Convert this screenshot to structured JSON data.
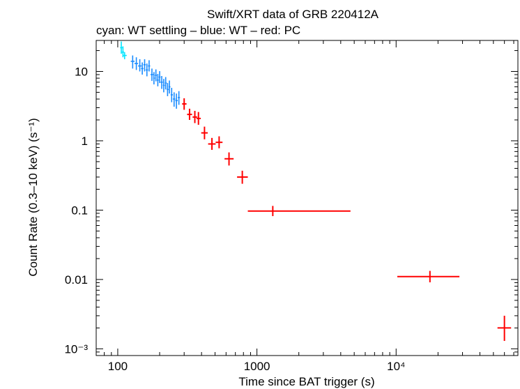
{
  "chart_data": {
    "type": "scatter",
    "title": "Swift/XRT data of GRB 220412A",
    "subtitle": "cyan: WT settling – blue: WT – red: PC",
    "xlabel": "Time since BAT trigger (s)",
    "ylabel": "Count Rate (0.3–10 keV) (s⁻¹)",
    "xscale": "log",
    "yscale": "log",
    "xlim": [
      70,
      75000
    ],
    "ylim": [
      0.0008,
      28
    ],
    "x_ticks": [
      {
        "value": 100,
        "label": "100"
      },
      {
        "value": 1000,
        "label": "1000"
      },
      {
        "value": 10000,
        "label": "10⁴"
      }
    ],
    "y_ticks": [
      {
        "value": 10,
        "label": "10"
      },
      {
        "value": 1,
        "label": "1"
      },
      {
        "value": 0.1,
        "label": "0.1"
      },
      {
        "value": 0.01,
        "label": "0.01"
      },
      {
        "value": 0.001,
        "label": "10⁻³"
      }
    ],
    "series": [
      {
        "name": "WT settling",
        "color": "#00e5ff",
        "points": [
          {
            "x": 106,
            "xlo": 104,
            "xhi": 108,
            "y": 22,
            "ylo": 18,
            "yhi": 27
          },
          {
            "x": 109,
            "xlo": 107,
            "xhi": 111,
            "y": 19,
            "ylo": 16,
            "yhi": 23
          },
          {
            "x": 112,
            "xlo": 109,
            "xhi": 116,
            "y": 17,
            "ylo": 15,
            "yhi": 19
          }
        ]
      },
      {
        "name": "WT",
        "color": "#1a8cff",
        "points": [
          {
            "x": 128,
            "xlo": 124,
            "xhi": 132,
            "y": 14,
            "ylo": 11,
            "yhi": 17
          },
          {
            "x": 136,
            "xlo": 132,
            "xhi": 140,
            "y": 13,
            "ylo": 10.5,
            "yhi": 16
          },
          {
            "x": 144,
            "xlo": 140,
            "xhi": 148,
            "y": 12,
            "ylo": 10,
            "yhi": 15
          },
          {
            "x": 150,
            "xlo": 147,
            "xhi": 153,
            "y": 11,
            "ylo": 9,
            "yhi": 13.5
          },
          {
            "x": 156,
            "xlo": 153,
            "xhi": 159,
            "y": 12.5,
            "ylo": 10,
            "yhi": 15
          },
          {
            "x": 162,
            "xlo": 159,
            "xhi": 165,
            "y": 10.5,
            "ylo": 8.5,
            "yhi": 13
          },
          {
            "x": 168,
            "xlo": 165,
            "xhi": 171,
            "y": 12,
            "ylo": 10,
            "yhi": 14.5
          },
          {
            "x": 176,
            "xlo": 172,
            "xhi": 180,
            "y": 9,
            "ylo": 7.3,
            "yhi": 11
          },
          {
            "x": 182,
            "xlo": 180,
            "xhi": 185,
            "y": 8,
            "ylo": 6.5,
            "yhi": 9.8
          },
          {
            "x": 188,
            "xlo": 185,
            "xhi": 191,
            "y": 8.8,
            "ylo": 7.2,
            "yhi": 10.7
          },
          {
            "x": 194,
            "xlo": 191,
            "xhi": 197,
            "y": 7.5,
            "ylo": 6.1,
            "yhi": 9.2
          },
          {
            "x": 200,
            "xlo": 197,
            "xhi": 203,
            "y": 8.3,
            "ylo": 6.8,
            "yhi": 10.1
          },
          {
            "x": 207,
            "xlo": 203,
            "xhi": 211,
            "y": 7,
            "ylo": 5.6,
            "yhi": 8.6
          },
          {
            "x": 214,
            "xlo": 211,
            "xhi": 218,
            "y": 6.3,
            "ylo": 5,
            "yhi": 7.8
          },
          {
            "x": 221,
            "xlo": 218,
            "xhi": 225,
            "y": 6.8,
            "ylo": 5.5,
            "yhi": 8.3
          },
          {
            "x": 228,
            "xlo": 225,
            "xhi": 232,
            "y": 5.5,
            "ylo": 4.4,
            "yhi": 6.8
          },
          {
            "x": 235,
            "xlo": 232,
            "xhi": 239,
            "y": 6,
            "ylo": 4.8,
            "yhi": 7.4
          },
          {
            "x": 244,
            "xlo": 240,
            "xhi": 249,
            "y": 4.6,
            "ylo": 3.6,
            "yhi": 5.8
          },
          {
            "x": 254,
            "xlo": 249,
            "xhi": 259,
            "y": 4,
            "ylo": 3.1,
            "yhi": 5
          },
          {
            "x": 264,
            "xlo": 259,
            "xhi": 270,
            "y": 3.8,
            "ylo": 2.9,
            "yhi": 4.8
          },
          {
            "x": 275,
            "xlo": 270,
            "xhi": 280,
            "y": 4.2,
            "ylo": 3.3,
            "yhi": 5.2
          }
        ]
      },
      {
        "name": "PC",
        "color": "#ff0000",
        "points": [
          {
            "x": 300,
            "xlo": 290,
            "xhi": 312,
            "y": 3.4,
            "ylo": 2.8,
            "yhi": 4.1
          },
          {
            "x": 328,
            "xlo": 315,
            "xhi": 342,
            "y": 2.4,
            "ylo": 2,
            "yhi": 2.9
          },
          {
            "x": 358,
            "xlo": 345,
            "xhi": 372,
            "y": 2.2,
            "ylo": 1.8,
            "yhi": 2.7
          },
          {
            "x": 380,
            "xlo": 368,
            "xhi": 395,
            "y": 2.1,
            "ylo": 1.7,
            "yhi": 2.6
          },
          {
            "x": 420,
            "xlo": 398,
            "xhi": 443,
            "y": 1.3,
            "ylo": 1.05,
            "yhi": 1.6
          },
          {
            "x": 475,
            "xlo": 446,
            "xhi": 505,
            "y": 0.9,
            "ylo": 0.74,
            "yhi": 1.1
          },
          {
            "x": 535,
            "xlo": 505,
            "xhi": 566,
            "y": 0.95,
            "ylo": 0.78,
            "yhi": 1.16
          },
          {
            "x": 630,
            "xlo": 585,
            "xhi": 680,
            "y": 0.55,
            "ylo": 0.44,
            "yhi": 0.68
          },
          {
            "x": 785,
            "xlo": 720,
            "xhi": 860,
            "y": 0.3,
            "ylo": 0.24,
            "yhi": 0.37
          },
          {
            "x": 1300,
            "xlo": 860,
            "xhi": 4700,
            "y": 0.097,
            "ylo": 0.082,
            "yhi": 0.115
          },
          {
            "x": 17500,
            "xlo": 10200,
            "xhi": 28500,
            "y": 0.011,
            "ylo": 0.0091,
            "yhi": 0.0133
          },
          {
            "x": 60000,
            "xlo": 53500,
            "xhi": 67000,
            "y": 0.002,
            "ylo": 0.0013,
            "yhi": 0.003
          }
        ]
      }
    ]
  }
}
